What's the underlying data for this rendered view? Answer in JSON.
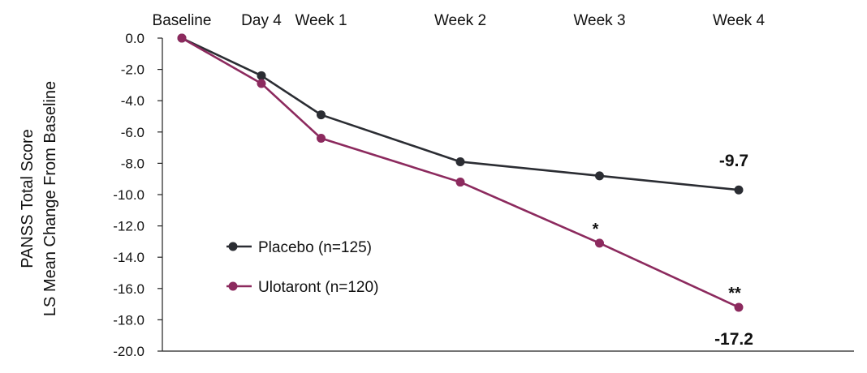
{
  "chart_data": {
    "type": "line",
    "title": "",
    "ylabel_lines": [
      "PANSS Total Score",
      "LS Mean Change From Baseline"
    ],
    "xlabel": "",
    "categories": [
      "Baseline",
      "Day 4",
      "Week 1",
      "Week 2",
      "Week 3",
      "Week 4"
    ],
    "x_positions": [
      0,
      4,
      7,
      14,
      21,
      28
    ],
    "ylim": [
      -20,
      0
    ],
    "y_ticks": [
      0,
      -2,
      -4,
      -6,
      -8,
      -10,
      -12,
      -14,
      -16,
      -18,
      -20
    ],
    "y_tick_labels": [
      "0.0",
      "-2.0",
      "-4.0",
      "-6.0",
      "-8.0",
      "-10.0",
      "-12.0",
      "-14.0",
      "-16.0",
      "-18.0",
      "-20.0"
    ],
    "grid": false,
    "legend_position": "lower-left",
    "series": [
      {
        "name": "Placebo (n=125)",
        "color": "#2b2d33",
        "values": [
          0.0,
          -2.4,
          -4.9,
          -7.9,
          -8.8,
          -9.7
        ]
      },
      {
        "name": "Ulotaront (n=120)",
        "color": "#8c2a5e",
        "values": [
          0.0,
          -2.9,
          -6.4,
          -9.2,
          -13.1,
          -17.2
        ]
      }
    ],
    "annotations": [
      {
        "text": "-9.7",
        "series": 0,
        "point": 5,
        "position": "above"
      },
      {
        "text": "-17.2",
        "series": 1,
        "point": 5,
        "position": "below"
      },
      {
        "text": "*",
        "series": 1,
        "point": 4,
        "position": "above"
      },
      {
        "text": "**",
        "series": 1,
        "point": 5,
        "position": "above"
      }
    ]
  }
}
